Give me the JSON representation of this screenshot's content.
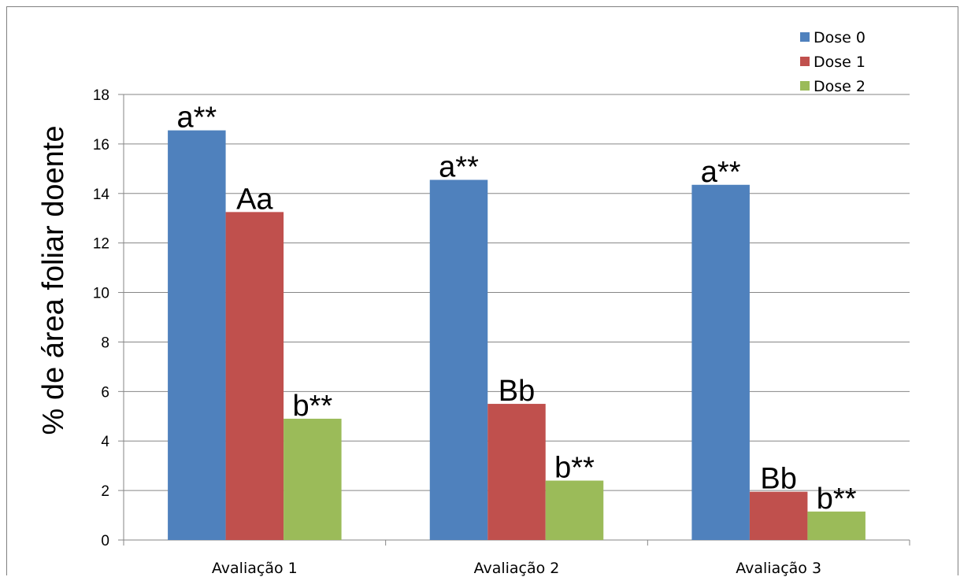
{
  "chart_data": {
    "type": "bar",
    "title": "",
    "xlabel": "",
    "ylabel": "% de área foliar doente",
    "ylim": [
      0,
      18
    ],
    "yticks": [
      0,
      2,
      4,
      6,
      8,
      10,
      12,
      14,
      16,
      18
    ],
    "grid": true,
    "legend_position": "top-right",
    "categories": [
      "Avaliação 1",
      "Avaliação 2",
      "Avaliação 3"
    ],
    "series": [
      {
        "name": "Dose 0",
        "color": "#4F81BD",
        "values": [
          16.55,
          14.55,
          14.35
        ],
        "labels": [
          "a**",
          "a**",
          "a**"
        ]
      },
      {
        "name": "Dose 1",
        "color": "#C0504D",
        "values": [
          13.25,
          5.5,
          1.95
        ],
        "labels": [
          "Aa",
          "Bb",
          "Bb"
        ]
      },
      {
        "name": "Dose 2",
        "color": "#9BBB59",
        "values": [
          4.9,
          2.4,
          1.15
        ],
        "labels": [
          "b**",
          "b**",
          "b**"
        ]
      }
    ]
  }
}
